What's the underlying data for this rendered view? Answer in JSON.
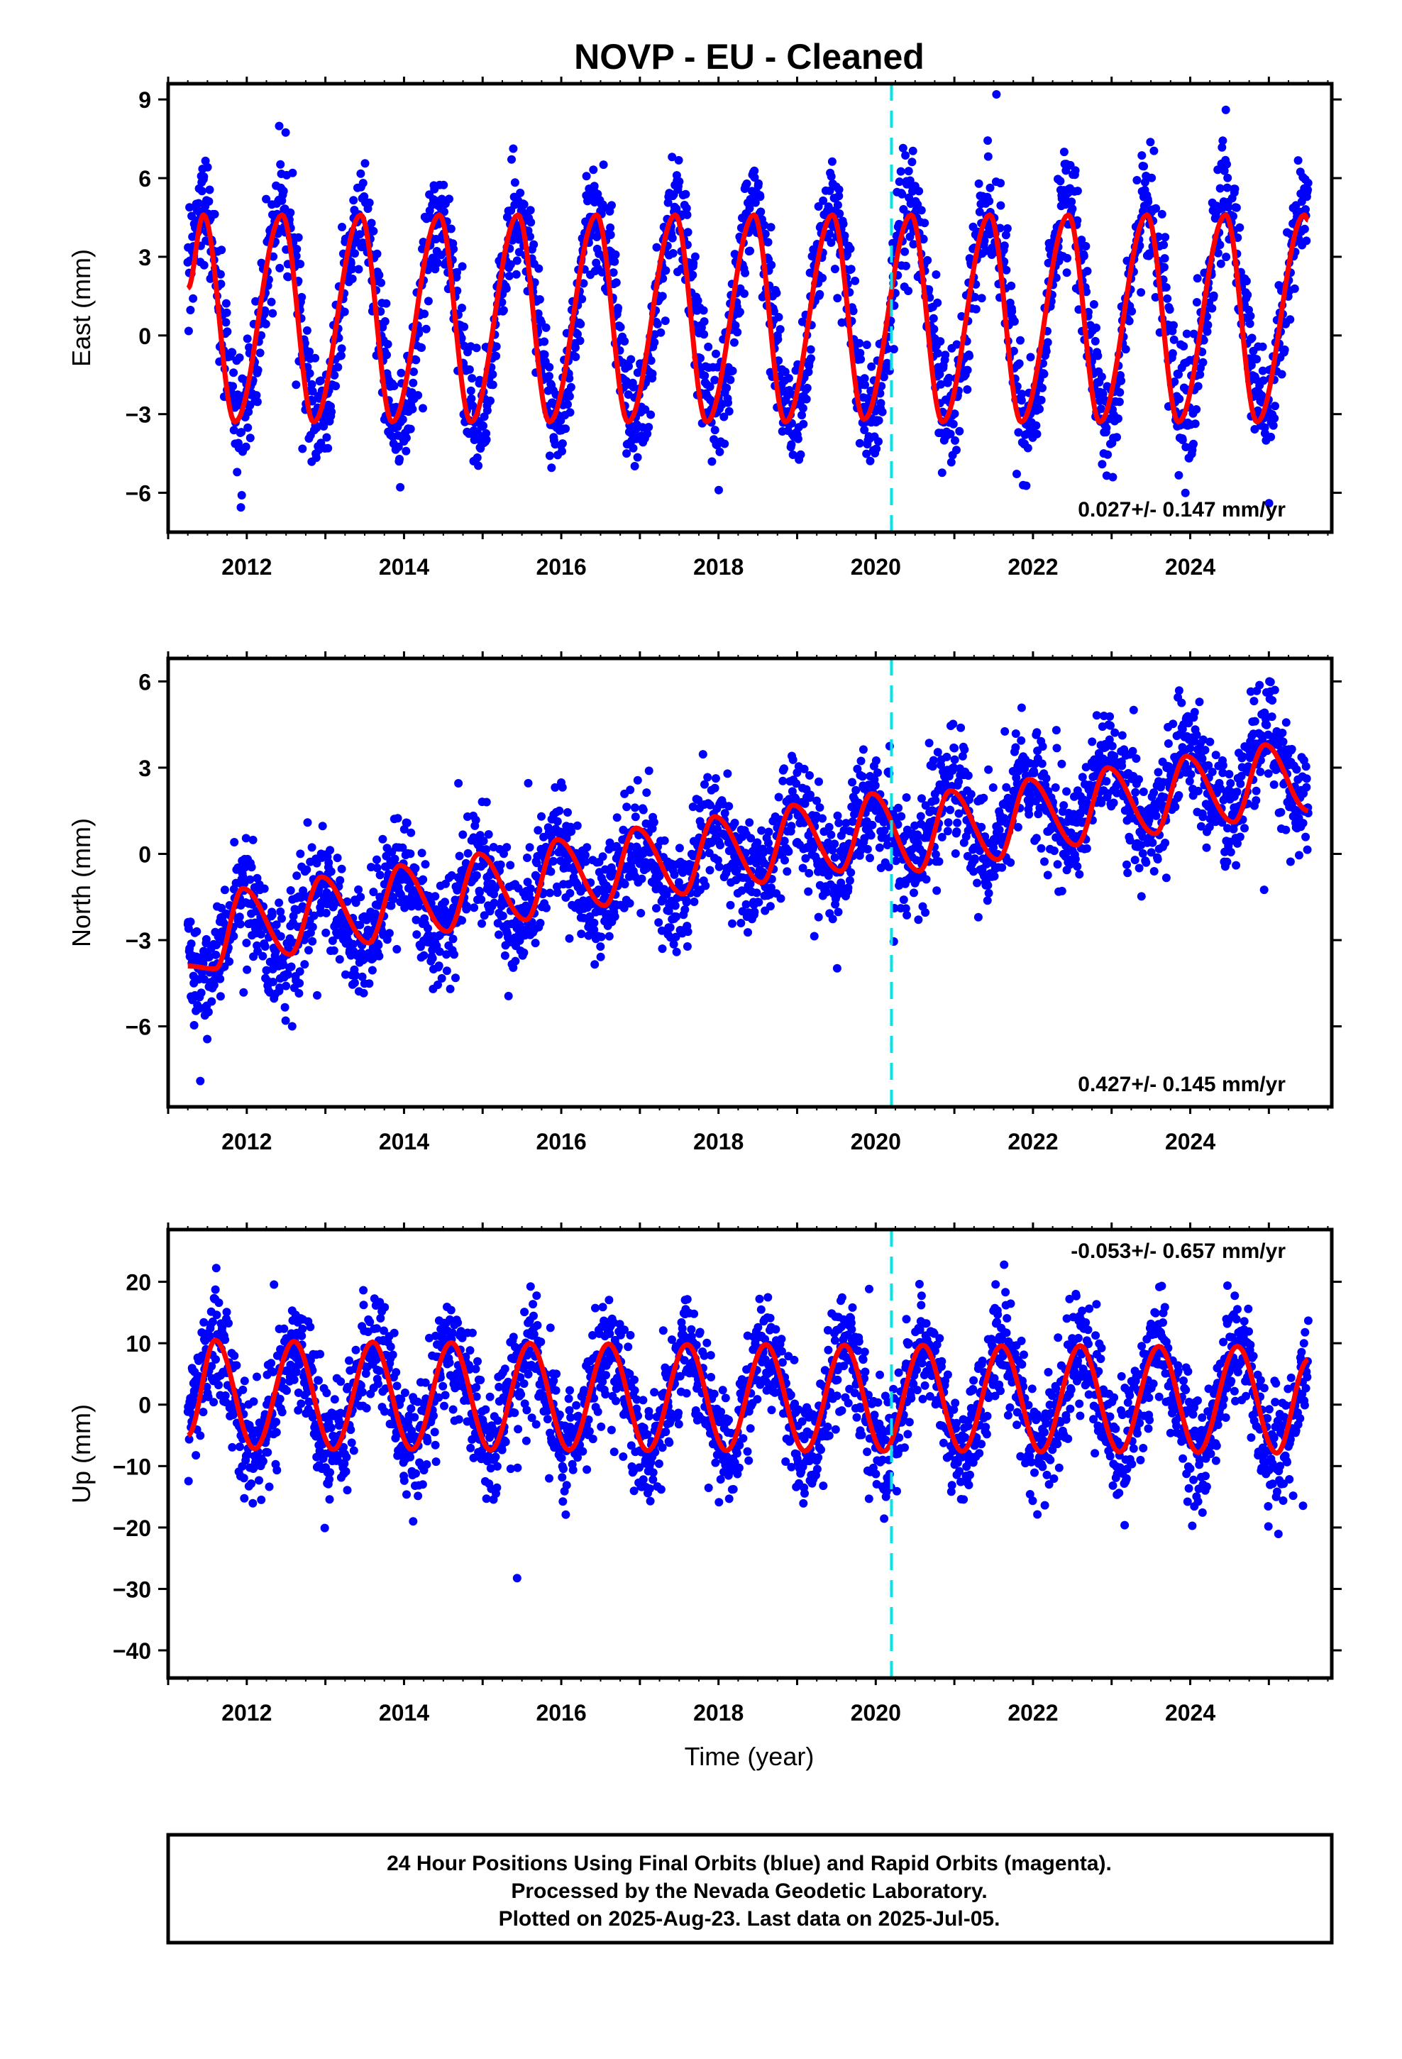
{
  "title": "NOVP  - EU - Cleaned",
  "xlabel": "Time (year)",
  "footer": [
    "24 Hour Positions Using Final Orbits (blue) and Rapid Orbits (magenta).",
    "Processed by the Nevada Geodetic Laboratory.",
    "Plotted on 2025-Aug-23. Last data on 2025-Jul-05."
  ],
  "colors": {
    "points": "#0000ff",
    "fit": "#ff0000",
    "event_line": "#00e5e5",
    "frame": "#000000"
  },
  "chart_data": [
    {
      "type": "scatter",
      "panel": "east",
      "ylabel": "East (mm)",
      "xlim": [
        2011.0,
        2025.8
      ],
      "ylim": [
        -7.5,
        9.6
      ],
      "x_ticks": [
        2012,
        2014,
        2016,
        2018,
        2020,
        2022,
        2024
      ],
      "y_ticks": [
        -6,
        -3,
        0,
        3,
        6,
        9
      ],
      "event_line_x": 2020.2,
      "rate_label": "0.027+/- 0.147 mm/yr",
      "rate_position": "bottom-right",
      "series": [
        {
          "name": "",
          "style": "points",
          "x_start": 2011.25,
          "x_end": 2025.5,
          "seasonal_amplitude": 4.0,
          "seasonal_peak_phase": 0.44,
          "offset": 0.6,
          "trend_per_yr": 0.027,
          "noise_sd": 1.1
        },
        {
          "name": "",
          "style": "line",
          "x": [
            2011.25,
            2011.45,
            2011.85,
            2012.45,
            2012.85,
            2013.45,
            2013.85,
            2014.45,
            2014.85,
            2015.45,
            2015.85,
            2016.45,
            2016.85,
            2017.45,
            2017.85,
            2018.45,
            2018.85,
            2019.45,
            2019.85,
            2020.45,
            2020.85,
            2021.45,
            2021.85,
            2022.45,
            2022.85,
            2023.45,
            2023.85,
            2024.45,
            2024.85,
            2025.45,
            2025.5
          ],
          "y": [
            1.8,
            4.6,
            -3.3,
            4.6,
            -3.3,
            4.6,
            -3.3,
            4.6,
            -3.3,
            4.6,
            -3.3,
            4.6,
            -3.3,
            4.6,
            -3.3,
            4.6,
            -3.3,
            4.6,
            -3.2,
            4.6,
            -3.3,
            4.6,
            -3.3,
            4.6,
            -3.3,
            4.6,
            -3.3,
            4.6,
            -3.3,
            4.6,
            4.4
          ]
        }
      ]
    },
    {
      "type": "scatter",
      "panel": "north",
      "ylabel": "North (mm)",
      "xlim": [
        2011.0,
        2025.8
      ],
      "ylim": [
        -8.8,
        6.8
      ],
      "x_ticks": [
        2012,
        2014,
        2016,
        2018,
        2020,
        2022,
        2024
      ],
      "y_ticks": [
        -6,
        -3,
        0,
        3,
        6
      ],
      "event_line_x": 2020.2,
      "rate_label": "0.427+/- 0.145 mm/yr",
      "rate_position": "bottom-right",
      "series": [
        {
          "name": "",
          "style": "points",
          "x_start": 2011.25,
          "x_end": 2025.5,
          "seasonal_amplitude": 1.3,
          "seasonal_peak_phase": 0.95,
          "offset": -3.0,
          "trend_per_yr": 0.427,
          "noise_sd": 0.95
        },
        {
          "name": "",
          "style": "line",
          "x": [
            2011.25,
            2011.6,
            2011.95,
            2012.55,
            2012.95,
            2013.55,
            2013.95,
            2014.55,
            2014.95,
            2015.55,
            2015.95,
            2016.55,
            2016.95,
            2017.55,
            2017.95,
            2018.55,
            2018.95,
            2019.55,
            2019.95,
            2020.55,
            2020.95,
            2021.55,
            2021.95,
            2022.55,
            2022.95,
            2023.55,
            2023.95,
            2024.55,
            2024.95,
            2025.5
          ],
          "y": [
            -3.9,
            -4.0,
            -1.2,
            -3.5,
            -0.8,
            -3.1,
            -0.4,
            -2.7,
            0.0,
            -2.3,
            0.5,
            -1.8,
            0.9,
            -1.4,
            1.3,
            -1.0,
            1.7,
            -0.6,
            2.1,
            -0.6,
            2.2,
            -0.2,
            2.6,
            0.3,
            3.0,
            0.7,
            3.4,
            1.1,
            3.8,
            1.5
          ]
        }
      ]
    },
    {
      "type": "scatter",
      "panel": "up",
      "ylabel": "Up (mm)",
      "xlim": [
        2011.0,
        2025.8
      ],
      "ylim": [
        -44.5,
        28.5
      ],
      "x_ticks": [
        2012,
        2014,
        2016,
        2018,
        2020,
        2022,
        2024
      ],
      "y_ticks": [
        -40,
        -30,
        -20,
        -10,
        0,
        10,
        20
      ],
      "event_line_x": 2020.2,
      "rate_label": "-0.053+/- 0.657 mm/yr",
      "rate_position": "top-right",
      "series": [
        {
          "name": "",
          "style": "points",
          "x_start": 2011.25,
          "x_end": 2025.5,
          "seasonal_amplitude": 8.5,
          "seasonal_peak_phase": 0.6,
          "offset": 1.2,
          "trend_per_yr": -0.053,
          "noise_sd": 4.6
        },
        {
          "name": "",
          "style": "line",
          "x": [
            2011.25,
            2011.6,
            2012.1,
            2012.6,
            2013.1,
            2013.6,
            2014.1,
            2014.6,
            2015.1,
            2015.6,
            2016.1,
            2016.6,
            2017.1,
            2017.6,
            2018.1,
            2018.6,
            2019.1,
            2019.6,
            2020.1,
            2020.6,
            2021.1,
            2021.6,
            2022.1,
            2022.6,
            2023.1,
            2023.6,
            2024.1,
            2024.6,
            2025.1,
            2025.5
          ],
          "y": [
            -5.0,
            10.5,
            -7.2,
            10.3,
            -7.3,
            10.2,
            -7.3,
            10.1,
            -7.4,
            10.0,
            -7.4,
            9.9,
            -7.5,
            9.8,
            -7.5,
            9.8,
            -7.6,
            9.7,
            -7.6,
            9.7,
            -7.6,
            9.6,
            -7.7,
            9.6,
            -7.7,
            9.5,
            -7.8,
            9.5,
            -7.9,
            7.3
          ]
        }
      ]
    }
  ]
}
